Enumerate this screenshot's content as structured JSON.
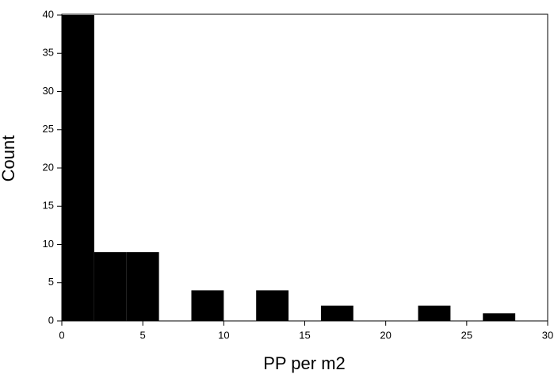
{
  "chart_data": {
    "type": "histogram",
    "x_label": "PP per m2",
    "y_label": "Count",
    "bins": [
      0,
      2,
      4,
      6,
      8,
      10,
      12,
      14,
      16,
      18,
      20,
      22,
      24,
      26,
      28,
      30
    ],
    "values": [
      40,
      9,
      9,
      0,
      4,
      0,
      4,
      0,
      2,
      0,
      0,
      2,
      0,
      1,
      0
    ],
    "color": "#000000",
    "xlim": [
      0,
      30
    ],
    "xticks": [
      0,
      5,
      10,
      15,
      20,
      25,
      30
    ],
    "ylim": [
      0,
      40
    ],
    "yticks": [
      0,
      5,
      10,
      15,
      20,
      25,
      30,
      35,
      40
    ]
  }
}
